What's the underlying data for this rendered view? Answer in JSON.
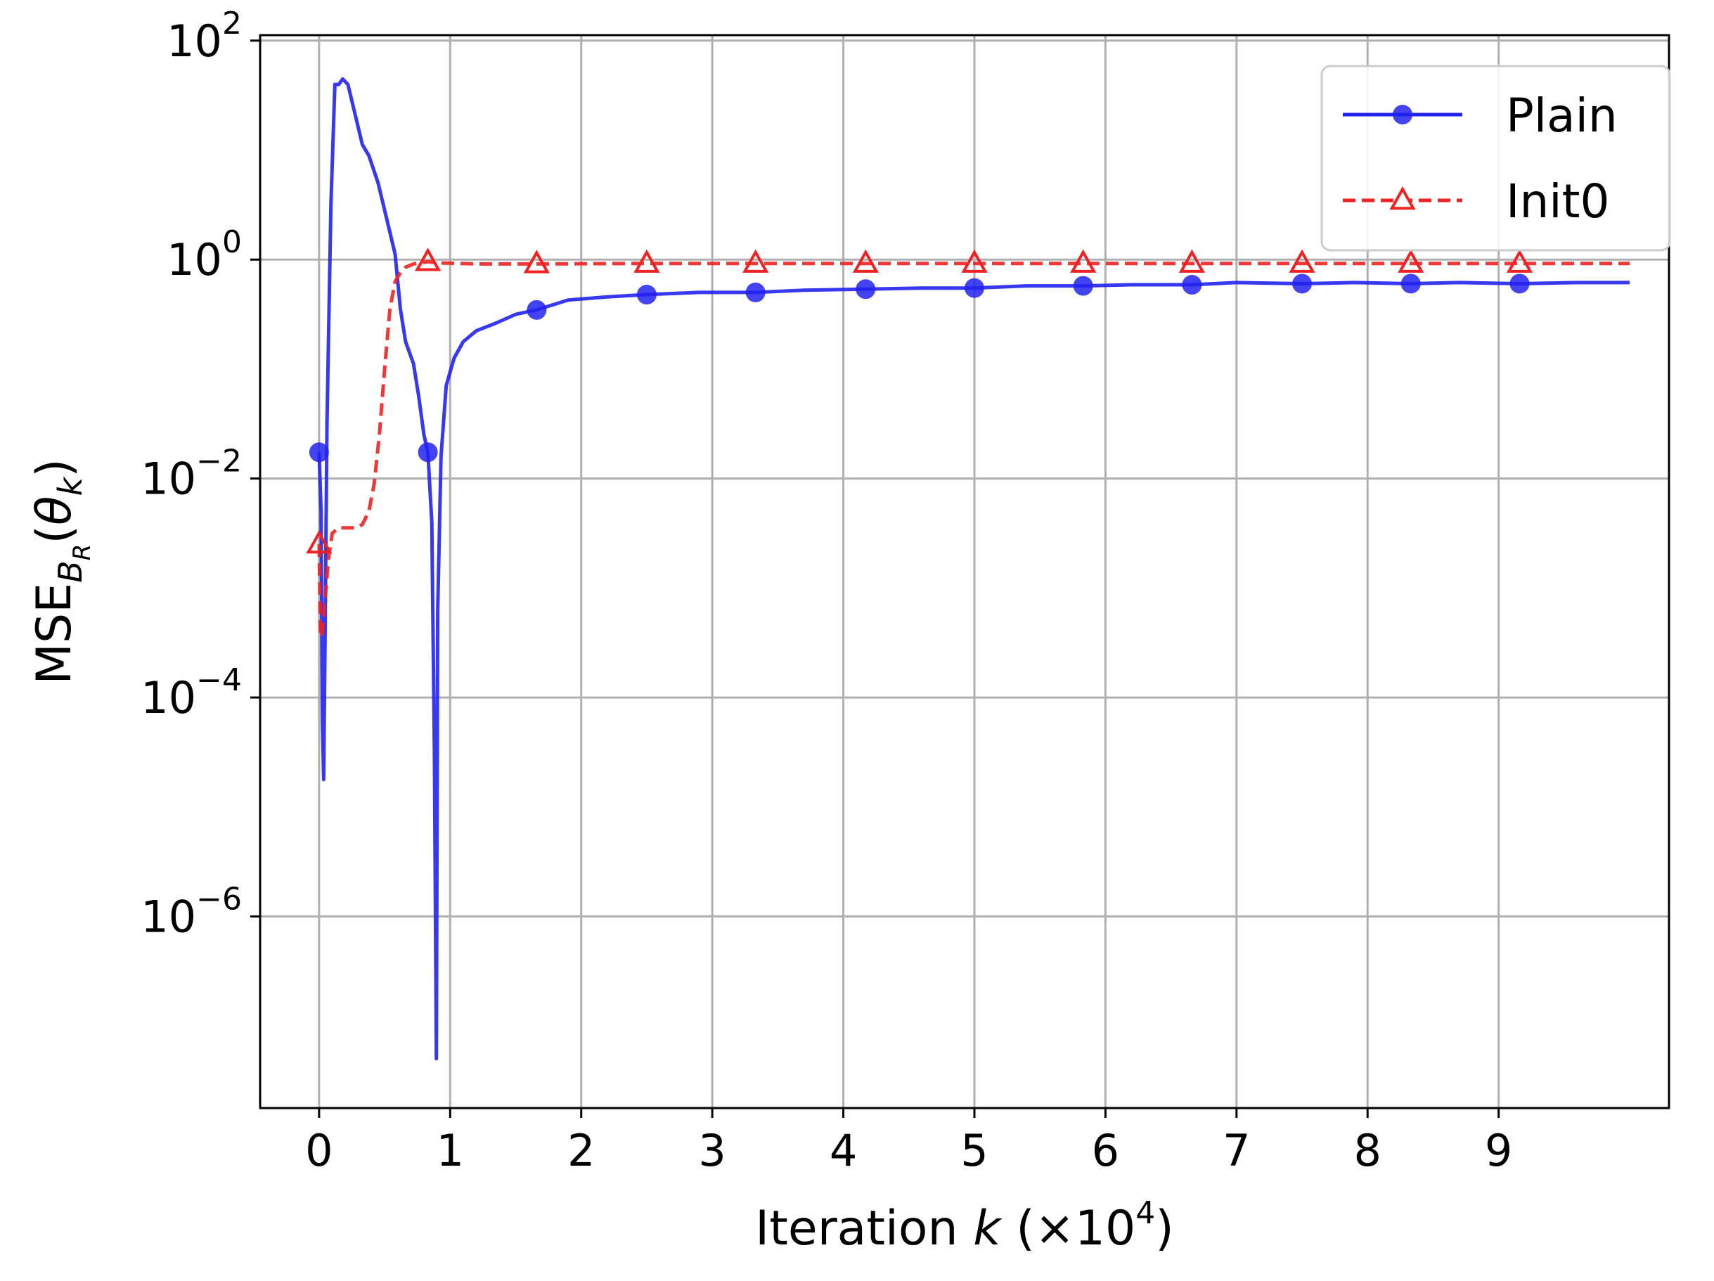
{
  "chart_data": {
    "type": "line",
    "xlabel": {
      "prefix": "Iteration ",
      "var": "k",
      "suffix_open": " (×10",
      "exp": "4",
      "suffix_close": ")"
    },
    "ylabel": {
      "prefix": "MSE",
      "sub": "B",
      "subsub": "R",
      "open": "(",
      "theta": "θ",
      "theta_sub": "k",
      "close": ")"
    },
    "xlim": [
      -0.45,
      10.3
    ],
    "ylim_log10": [
      -7.75,
      2.05
    ],
    "y_scale": "log",
    "grid": true,
    "legend_position": "upper right",
    "x_ticks": [
      {
        "value": 0,
        "label": "0"
      },
      {
        "value": 1,
        "label": "1"
      },
      {
        "value": 2,
        "label": "2"
      },
      {
        "value": 3,
        "label": "3"
      },
      {
        "value": 4,
        "label": "4"
      },
      {
        "value": 5,
        "label": "5"
      },
      {
        "value": 6,
        "label": "6"
      },
      {
        "value": 7,
        "label": "7"
      },
      {
        "value": 8,
        "label": "8"
      },
      {
        "value": 9,
        "label": "9"
      }
    ],
    "y_ticks": [
      {
        "exp": 2,
        "base": "10",
        "sup": "2"
      },
      {
        "exp": 0,
        "base": "10",
        "sup": "0"
      },
      {
        "exp": -2,
        "base": "10",
        "sup": "−2"
      },
      {
        "exp": -4,
        "base": "10",
        "sup": "−4"
      },
      {
        "exp": -6,
        "base": "10",
        "sup": "−6"
      }
    ],
    "series": [
      {
        "name": "Plain",
        "color": "#2222ee",
        "line_style": "solid",
        "marker": "circle",
        "marker_filled": true,
        "points": [
          [
            0,
            -1.76
          ],
          [
            0.015,
            -2.3
          ],
          [
            0.025,
            -4.2
          ],
          [
            0.035,
            -4.75
          ],
          [
            0.045,
            -3.5
          ],
          [
            0.06,
            -1.5
          ],
          [
            0.09,
            0.5
          ],
          [
            0.12,
            1.6
          ],
          [
            0.15,
            1.6
          ],
          [
            0.18,
            1.65
          ],
          [
            0.22,
            1.6
          ],
          [
            0.28,
            1.3
          ],
          [
            0.33,
            1.05
          ],
          [
            0.38,
            0.95
          ],
          [
            0.45,
            0.7
          ],
          [
            0.5,
            0.45
          ],
          [
            0.54,
            0.25
          ],
          [
            0.58,
            0.05
          ],
          [
            0.62,
            -0.45
          ],
          [
            0.66,
            -0.75
          ],
          [
            0.72,
            -0.95
          ],
          [
            0.76,
            -1.25
          ],
          [
            0.8,
            -1.6
          ],
          [
            0.83,
            -1.76
          ],
          [
            0.86,
            -2.4
          ],
          [
            0.88,
            -4.5
          ],
          [
            0.895,
            -7.3
          ],
          [
            0.905,
            -3.2
          ],
          [
            0.93,
            -1.8
          ],
          [
            0.97,
            -1.15
          ],
          [
            1.03,
            -0.9
          ],
          [
            1.1,
            -0.75
          ],
          [
            1.2,
            -0.65
          ],
          [
            1.35,
            -0.58
          ],
          [
            1.5,
            -0.5
          ],
          [
            1.66,
            -0.46
          ],
          [
            1.9,
            -0.37
          ],
          [
            2.2,
            -0.34
          ],
          [
            2.5,
            -0.32
          ],
          [
            2.9,
            -0.3
          ],
          [
            3.33,
            -0.3
          ],
          [
            3.7,
            -0.28
          ],
          [
            4.17,
            -0.27
          ],
          [
            4.6,
            -0.26
          ],
          [
            5.0,
            -0.26
          ],
          [
            5.4,
            -0.24
          ],
          [
            5.83,
            -0.24
          ],
          [
            6.2,
            -0.23
          ],
          [
            6.66,
            -0.23
          ],
          [
            7.0,
            -0.21
          ],
          [
            7.5,
            -0.22
          ],
          [
            7.9,
            -0.21
          ],
          [
            8.33,
            -0.22
          ],
          [
            8.7,
            -0.21
          ],
          [
            9.16,
            -0.22
          ],
          [
            9.6,
            -0.21
          ],
          [
            10.0,
            -0.21
          ]
        ],
        "markers_at": [
          [
            0,
            -1.76
          ],
          [
            0.83,
            -1.76
          ],
          [
            1.66,
            -0.46
          ],
          [
            2.5,
            -0.32
          ],
          [
            3.33,
            -0.3
          ],
          [
            4.17,
            -0.27
          ],
          [
            5.0,
            -0.26
          ],
          [
            5.83,
            -0.24
          ],
          [
            6.66,
            -0.23
          ],
          [
            7.5,
            -0.22
          ],
          [
            8.33,
            -0.22
          ],
          [
            9.16,
            -0.22
          ]
        ]
      },
      {
        "name": "Init0",
        "color": "#ee2222",
        "line_style": "dashed",
        "marker": "triangle",
        "marker_filled": false,
        "points": [
          [
            0,
            -2.6
          ],
          [
            0.01,
            -3.4
          ],
          [
            0.02,
            -3.45
          ],
          [
            0.04,
            -3.2
          ],
          [
            0.07,
            -2.75
          ],
          [
            0.1,
            -2.5
          ],
          [
            0.15,
            -2.45
          ],
          [
            0.2,
            -2.45
          ],
          [
            0.28,
            -2.45
          ],
          [
            0.33,
            -2.42
          ],
          [
            0.38,
            -2.3
          ],
          [
            0.42,
            -2.05
          ],
          [
            0.46,
            -1.6
          ],
          [
            0.5,
            -1.0
          ],
          [
            0.54,
            -0.45
          ],
          [
            0.58,
            -0.2
          ],
          [
            0.62,
            -0.12
          ],
          [
            0.66,
            -0.07
          ],
          [
            0.72,
            -0.04
          ],
          [
            0.8,
            -0.025
          ],
          [
            0.83,
            -0.02
          ],
          [
            0.9,
            -0.03
          ],
          [
            1.2,
            -0.04
          ],
          [
            1.66,
            -0.04
          ],
          [
            2.5,
            -0.035
          ],
          [
            3.33,
            -0.035
          ],
          [
            4.17,
            -0.035
          ],
          [
            5.0,
            -0.035
          ],
          [
            5.83,
            -0.035
          ],
          [
            6.66,
            -0.035
          ],
          [
            7.5,
            -0.035
          ],
          [
            8.33,
            -0.035
          ],
          [
            9.16,
            -0.035
          ],
          [
            10.0,
            -0.035
          ]
        ],
        "markers_at": [
          [
            0,
            -2.6
          ],
          [
            0.83,
            -0.02
          ],
          [
            1.66,
            -0.04
          ],
          [
            2.5,
            -0.035
          ],
          [
            3.33,
            -0.035
          ],
          [
            4.17,
            -0.035
          ],
          [
            5.0,
            -0.035
          ],
          [
            5.83,
            -0.035
          ],
          [
            6.66,
            -0.035
          ],
          [
            7.5,
            -0.035
          ],
          [
            8.33,
            -0.035
          ],
          [
            9.16,
            -0.035
          ]
        ]
      }
    ]
  }
}
